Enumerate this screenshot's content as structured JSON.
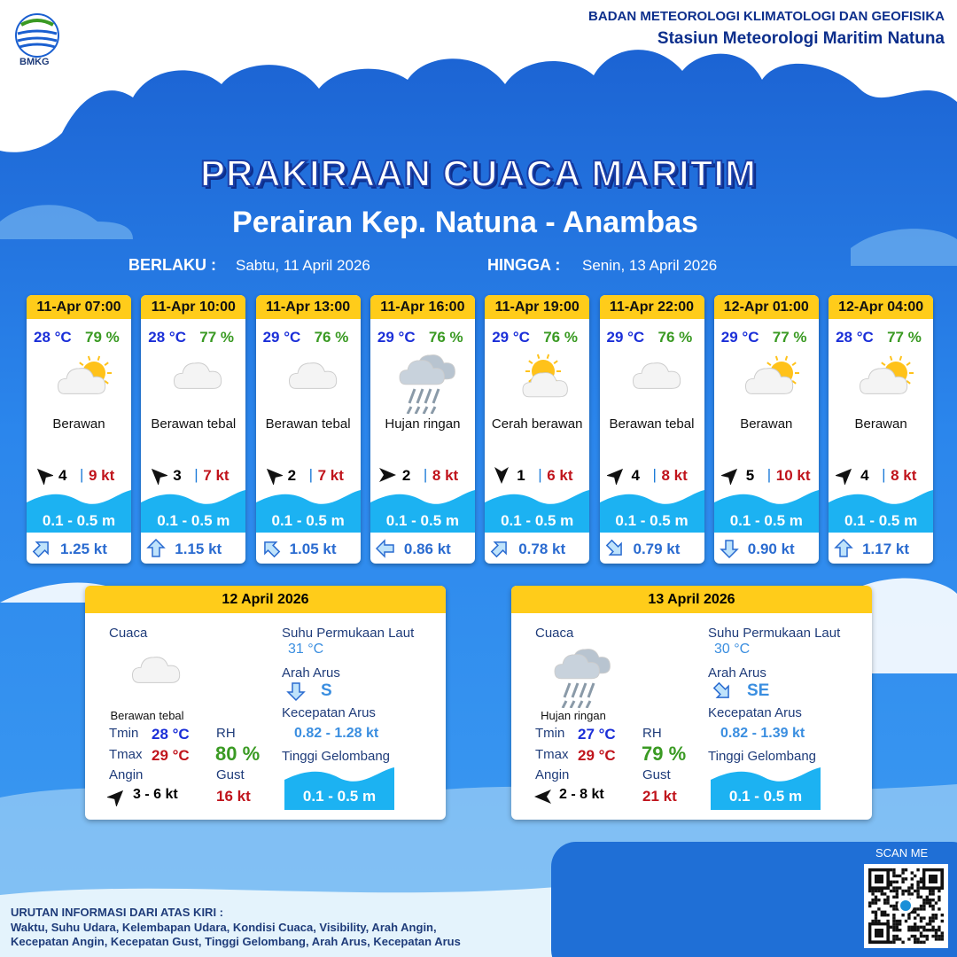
{
  "header": {
    "logo_text": "BMKG",
    "agency": "BADAN METEOROLOGI KLIMATOLOGI DAN GEOFISIKA",
    "station": "Stasiun Meteorologi Maritim Natuna"
  },
  "title": "PRAKIRAAN CUACA MARITIM",
  "subtitle": "Perairan Kep. Natuna - Anambas",
  "validity": {
    "from_label": "BERLAKU :",
    "from": "Sabtu, 11 April 2026",
    "to_label": "HINGGA :",
    "to": "Senin, 13 April 2026"
  },
  "forecasts": [
    {
      "time": "11-Apr 07:00",
      "temp": "28 °C",
      "rh": "79 %",
      "condition": "Berawan",
      "wind": "4",
      "gust": "9 kt",
      "wave": "0.1 - 0.5 m",
      "current": "1.25 kt"
    },
    {
      "time": "11-Apr 10:00",
      "temp": "28 °C",
      "rh": "77 %",
      "condition": "Berawan tebal",
      "wind": "3",
      "gust": "7 kt",
      "wave": "0.1 - 0.5 m",
      "current": "1.15 kt"
    },
    {
      "time": "11-Apr 13:00",
      "temp": "29 °C",
      "rh": "76 %",
      "condition": "Berawan tebal",
      "wind": "2",
      "gust": "7 kt",
      "wave": "0.1 - 0.5 m",
      "current": "1.05 kt"
    },
    {
      "time": "11-Apr 16:00",
      "temp": "29 °C",
      "rh": "76 %",
      "condition": "Hujan ringan",
      "wind": "2",
      "gust": "8 kt",
      "wave": "0.1 - 0.5 m",
      "current": "0.86 kt"
    },
    {
      "time": "11-Apr 19:00",
      "temp": "29 °C",
      "rh": "76 %",
      "condition": "Cerah berawan",
      "wind": "1",
      "gust": "6 kt",
      "wave": "0.1 - 0.5 m",
      "current": "0.78 kt"
    },
    {
      "time": "11-Apr 22:00",
      "temp": "29 °C",
      "rh": "76 %",
      "condition": "Berawan tebal",
      "wind": "4",
      "gust": "8 kt",
      "wave": "0.1 - 0.5 m",
      "current": "0.79 kt"
    },
    {
      "time": "12-Apr 01:00",
      "temp": "29 °C",
      "rh": "77 %",
      "condition": "Berawan",
      "wind": "5",
      "gust": "10 kt",
      "wave": "0.1 - 0.5 m",
      "current": "0.90 kt"
    },
    {
      "time": "12-Apr 04:00",
      "temp": "28 °C",
      "rh": "77 %",
      "condition": "Berawan",
      "wind": "4",
      "gust": "8 kt",
      "wave": "0.1 - 0.5 m",
      "current": "1.17 kt"
    }
  ],
  "panel_labels": {
    "weather": "Cuaca",
    "tmin": "Tmin",
    "tmax": "Tmax",
    "wind": "Angin",
    "rh": "RH",
    "gust": "Gust",
    "sst": "Suhu Permukaan Laut",
    "current_dir": "Arah Arus",
    "current_speed": "Kecepatan Arus",
    "wave": "Tinggi Gelombang"
  },
  "daily": [
    {
      "date": "12 April 2026",
      "condition": "Berawan tebal",
      "tmin": "28 °C",
      "tmax": "29 °C",
      "rh": "80 %",
      "wind": "3 - 6 kt",
      "gust": "16 kt",
      "sst": "31 °C",
      "current_dir": "S",
      "current_speed": "0.82 - 1.28 kt",
      "wave": "0.1 - 0.5 m"
    },
    {
      "date": "13 April 2026",
      "condition": "Hujan ringan",
      "tmin": "27 °C",
      "tmax": "29 °C",
      "rh": "79 %",
      "wind": "2 - 8 kt",
      "gust": "21 kt",
      "sst": "30 °C",
      "current_dir": "SE",
      "current_speed": "0.82 - 1.39 kt",
      "wave": "0.1 - 0.5 m"
    }
  ],
  "footer": {
    "scan": "SCAN ME",
    "legend_title": "URUTAN INFORMASI DARI ATAS KIRI :",
    "legend_lines": [
      "Waktu, Suhu Udara, Kelembapan Udara, Kondisi Cuaca, Visibility, Arah Angin,",
      "Kecepatan Angin, Kecepatan Gust, Tinggi Gelombang, Arah Arus, Kecepatan Arus"
    ]
  }
}
